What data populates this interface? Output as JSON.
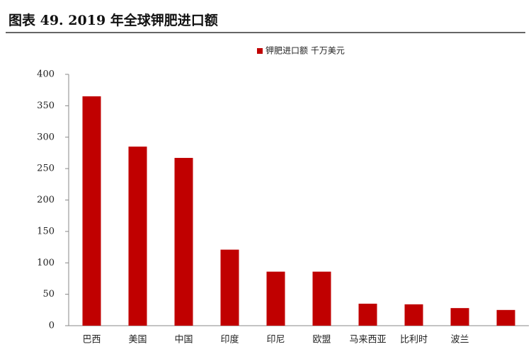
{
  "chart_data": {
    "type": "bar",
    "title": "图表 49. 2019 年全球钾肥进口额",
    "legend_label": "钾肥进口额  千万美元",
    "categories": [
      "巴西",
      "美国",
      "中国",
      "印度",
      "印尼",
      "欧盟",
      "马来西亚",
      "比利时",
      "波兰",
      null
    ],
    "values": [
      365,
      285,
      267,
      121,
      86,
      86,
      35,
      34,
      28,
      25
    ],
    "color": "#c00000",
    "ylim": [
      0,
      400
    ],
    "yticks": [
      0,
      50,
      100,
      150,
      200,
      250,
      300,
      350,
      400
    ],
    "grid": false
  }
}
